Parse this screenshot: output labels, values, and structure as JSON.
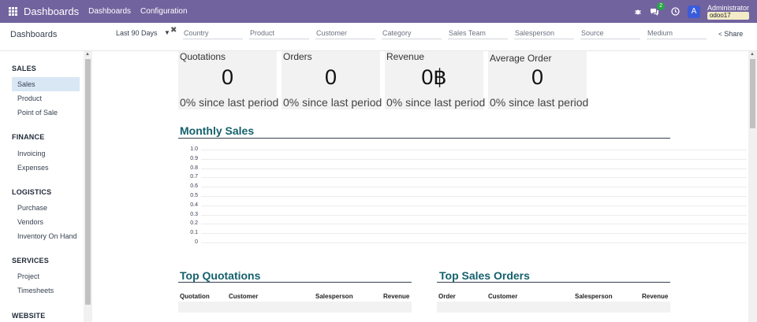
{
  "topbar": {
    "brand": "Dashboards",
    "menus": [
      "Dashboards",
      "Configuration"
    ],
    "icons": [
      "apps-icon",
      "bug-icon",
      "chat-icon",
      "clock-icon"
    ],
    "chat_badge": "2",
    "avatar_letter": "A",
    "user_name": "Administrator",
    "db_name": "odoo17"
  },
  "control": {
    "breadcrumb": "Dashboards",
    "period": "Last 90 Days",
    "filters": [
      "Country",
      "Product",
      "Customer",
      "Category",
      "Sales Team",
      "Salesperson",
      "Source",
      "Medium"
    ],
    "share": "Share"
  },
  "sidebar": {
    "sections": [
      {
        "title": "SALES",
        "items": [
          "Sales",
          "Product",
          "Point of Sale"
        ]
      },
      {
        "title": "FINANCE",
        "items": [
          "Invoicing",
          "Expenses"
        ]
      },
      {
        "title": "LOGISTICS",
        "items": [
          "Purchase",
          "Vendors",
          "Inventory On Hand"
        ]
      },
      {
        "title": "SERVICES",
        "items": [
          "Project",
          "Timesheets"
        ]
      },
      {
        "title": "WEBSITE",
        "items": []
      }
    ],
    "active_item": "Sales"
  },
  "kpis": [
    {
      "title": "Quotations",
      "value": "0",
      "delta": "0% since last period"
    },
    {
      "title": "Orders",
      "value": "0",
      "delta": "0% since last period"
    },
    {
      "title": "Revenue",
      "value": "0฿",
      "delta": "0% since last period"
    },
    {
      "title": "Average Order",
      "value": "0",
      "delta": "0% since last period"
    }
  ],
  "monthly_sales": {
    "title": "Monthly Sales"
  },
  "chart_data": {
    "type": "line",
    "title": "Monthly Sales",
    "x": [],
    "series": [],
    "ylim": [
      0,
      1.0
    ],
    "yticks": [
      "1.0",
      "0.9",
      "0.8",
      "0.7",
      "0.6",
      "0.5",
      "0.4",
      "0.3",
      "0.2",
      "0.1",
      "0"
    ],
    "grid": true
  },
  "top_quotations": {
    "title": "Top Quotations",
    "columns": [
      "Quotation",
      "Customer",
      "Salesperson",
      "Revenue"
    ]
  },
  "top_sales_orders": {
    "title": "Top Sales Orders",
    "columns": [
      "Order",
      "Customer",
      "Salesperson",
      "Revenue"
    ]
  }
}
